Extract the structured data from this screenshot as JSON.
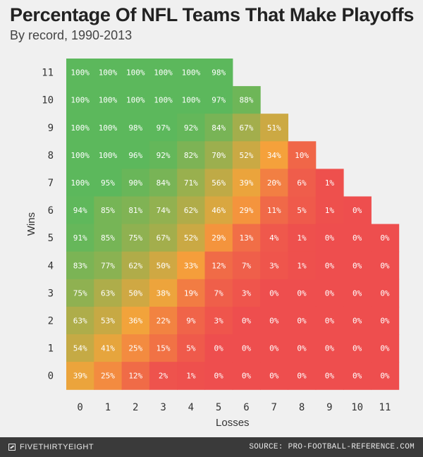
{
  "title": "Percentage Of NFL Teams That Make Playoffs",
  "subtitle": "By record, 1990-2013",
  "footer": {
    "brand": "FIVETHIRTYEIGHT",
    "brand_icon": "fivethirtyeight-logo-icon",
    "source": "SOURCE: PRO-FOOTBALL-REFERENCE.COM",
    "bg_color": "#3a3a3a"
  },
  "chart_data": {
    "type": "heatmap",
    "xlabel": "Losses",
    "ylabel": "Wins",
    "x_categories": [
      "0",
      "1",
      "2",
      "3",
      "4",
      "5",
      "6",
      "7",
      "8",
      "9",
      "10",
      "11"
    ],
    "y_categories": [
      "11",
      "10",
      "9",
      "8",
      "7",
      "6",
      "5",
      "4",
      "3",
      "2",
      "1",
      "0"
    ],
    "value_suffix": "%",
    "color_scale": {
      "low": "#ee4e4e",
      "mid": "#f5a33a",
      "high": "#5cb85c"
    },
    "rows": [
      {
        "wins": 11,
        "values": [
          100,
          100,
          100,
          100,
          100,
          98,
          null,
          null,
          null,
          null,
          null,
          null
        ]
      },
      {
        "wins": 10,
        "values": [
          100,
          100,
          100,
          100,
          100,
          97,
          88,
          null,
          null,
          null,
          null,
          null
        ]
      },
      {
        "wins": 9,
        "values": [
          100,
          100,
          98,
          97,
          92,
          84,
          67,
          51,
          null,
          null,
          null,
          null
        ]
      },
      {
        "wins": 8,
        "values": [
          100,
          100,
          96,
          92,
          82,
          70,
          52,
          34,
          10,
          null,
          null,
          null
        ]
      },
      {
        "wins": 7,
        "values": [
          100,
          95,
          90,
          84,
          71,
          56,
          39,
          20,
          6,
          1,
          null,
          null
        ]
      },
      {
        "wins": 6,
        "values": [
          94,
          85,
          81,
          74,
          62,
          46,
          29,
          11,
          5,
          1,
          0,
          null
        ]
      },
      {
        "wins": 5,
        "values": [
          91,
          85,
          75,
          67,
          52,
          29,
          13,
          4,
          1,
          0,
          0,
          0
        ]
      },
      {
        "wins": 4,
        "values": [
          83,
          77,
          62,
          50,
          33,
          12,
          7,
          3,
          1,
          0,
          0,
          0
        ]
      },
      {
        "wins": 3,
        "values": [
          75,
          63,
          50,
          38,
          19,
          7,
          3,
          0,
          0,
          0,
          0,
          0
        ]
      },
      {
        "wins": 2,
        "values": [
          63,
          53,
          36,
          22,
          9,
          3,
          0,
          0,
          0,
          0,
          0,
          0
        ]
      },
      {
        "wins": 1,
        "values": [
          54,
          41,
          25,
          15,
          5,
          0,
          0,
          0,
          0,
          0,
          0,
          0
        ]
      },
      {
        "wins": 0,
        "values": [
          39,
          25,
          12,
          2,
          1,
          0,
          0,
          0,
          0,
          0,
          0,
          0
        ]
      }
    ]
  }
}
